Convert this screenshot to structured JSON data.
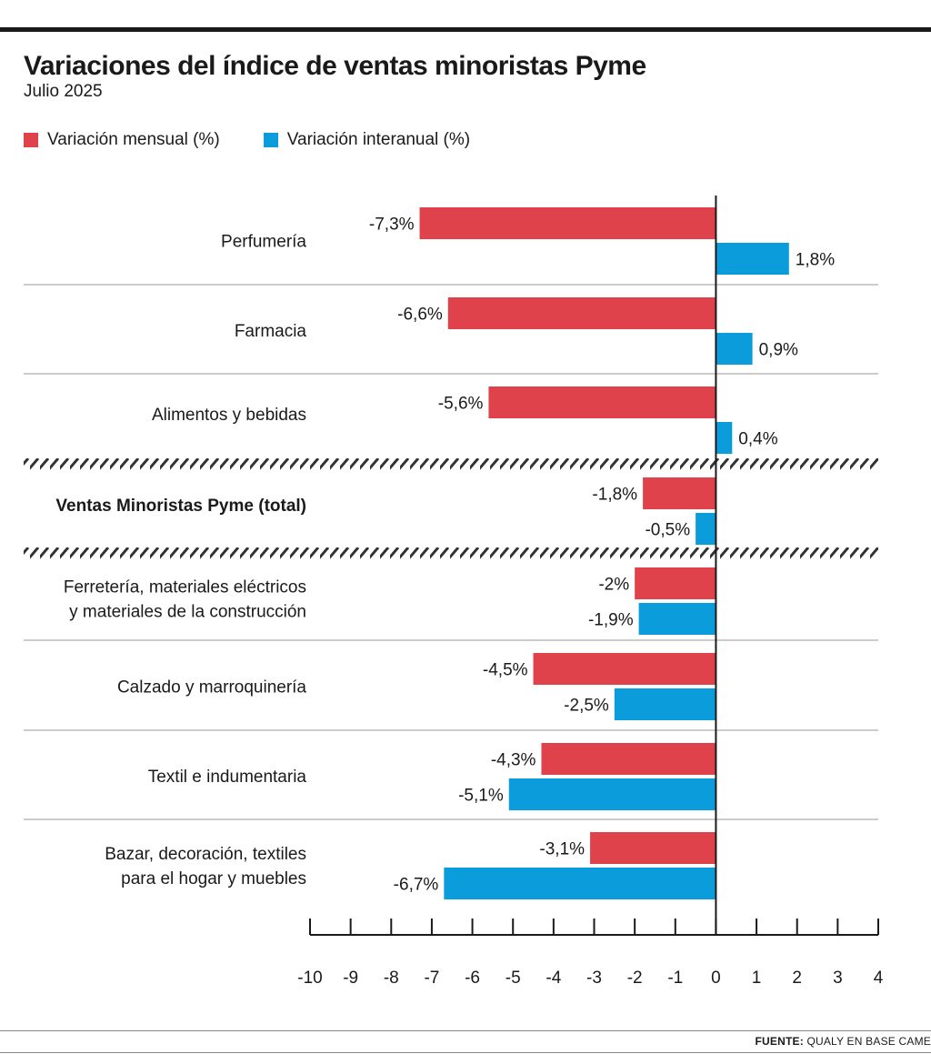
{
  "header": {
    "title": "Variaciones del índice de ventas minoristas Pyme",
    "subtitle": "Julio 2025"
  },
  "legend": {
    "monthly": "Variación mensual (%)",
    "yearly": "Variación interanual (%)"
  },
  "colors": {
    "monthly": "#e0424b",
    "yearly": "#0b9ddb"
  },
  "footer": {
    "source_label": "FUENTE:",
    "source_text": "QUALY EN BASE CAME"
  },
  "chart_data": {
    "type": "bar",
    "orientation": "horizontal",
    "title": "Variaciones del índice de ventas minoristas Pyme",
    "subtitle": "Julio 2025",
    "xlim": [
      -10,
      4
    ],
    "xticks": [
      "-10",
      "-9",
      "-8",
      "-7",
      "-6",
      "-5",
      "-4",
      "-3",
      "-2",
      "-1",
      "0",
      "1",
      "2",
      "3",
      "4"
    ],
    "categories": [
      [
        "Perfumería"
      ],
      [
        "Farmacia"
      ],
      [
        "Alimentos y bebidas"
      ],
      [
        "Ventas Minoristas Pyme (total)"
      ],
      [
        "Ferretería, materiales eléctricos",
        "y materiales de la construcción"
      ],
      [
        "Calzado y marroquinería"
      ],
      [
        "Textil e indumentaria"
      ],
      [
        "Bazar, decoración, textiles",
        "para el hogar y muebles"
      ]
    ],
    "highlight_category": 3,
    "series": [
      {
        "name": "Variación mensual (%)",
        "values": [
          -7.3,
          -6.6,
          -5.6,
          -1.8,
          -2,
          -4.5,
          -4.3,
          -3.1
        ],
        "labels": [
          "-7,3%",
          "-6,6%",
          "-5,6%",
          "-1,8%",
          "-2%",
          "-4,5%",
          "-4,3%",
          "-3,1%"
        ]
      },
      {
        "name": "Variación interanual (%)",
        "values": [
          1.8,
          0.9,
          0.4,
          -0.5,
          -1.9,
          -2.5,
          -5.1,
          -6.7
        ],
        "labels": [
          "1,8%",
          "0,9%",
          "0,4%",
          "-0,5%",
          "-1,9%",
          "-2,5%",
          "-5,1%",
          "-6,7%"
        ]
      }
    ]
  }
}
